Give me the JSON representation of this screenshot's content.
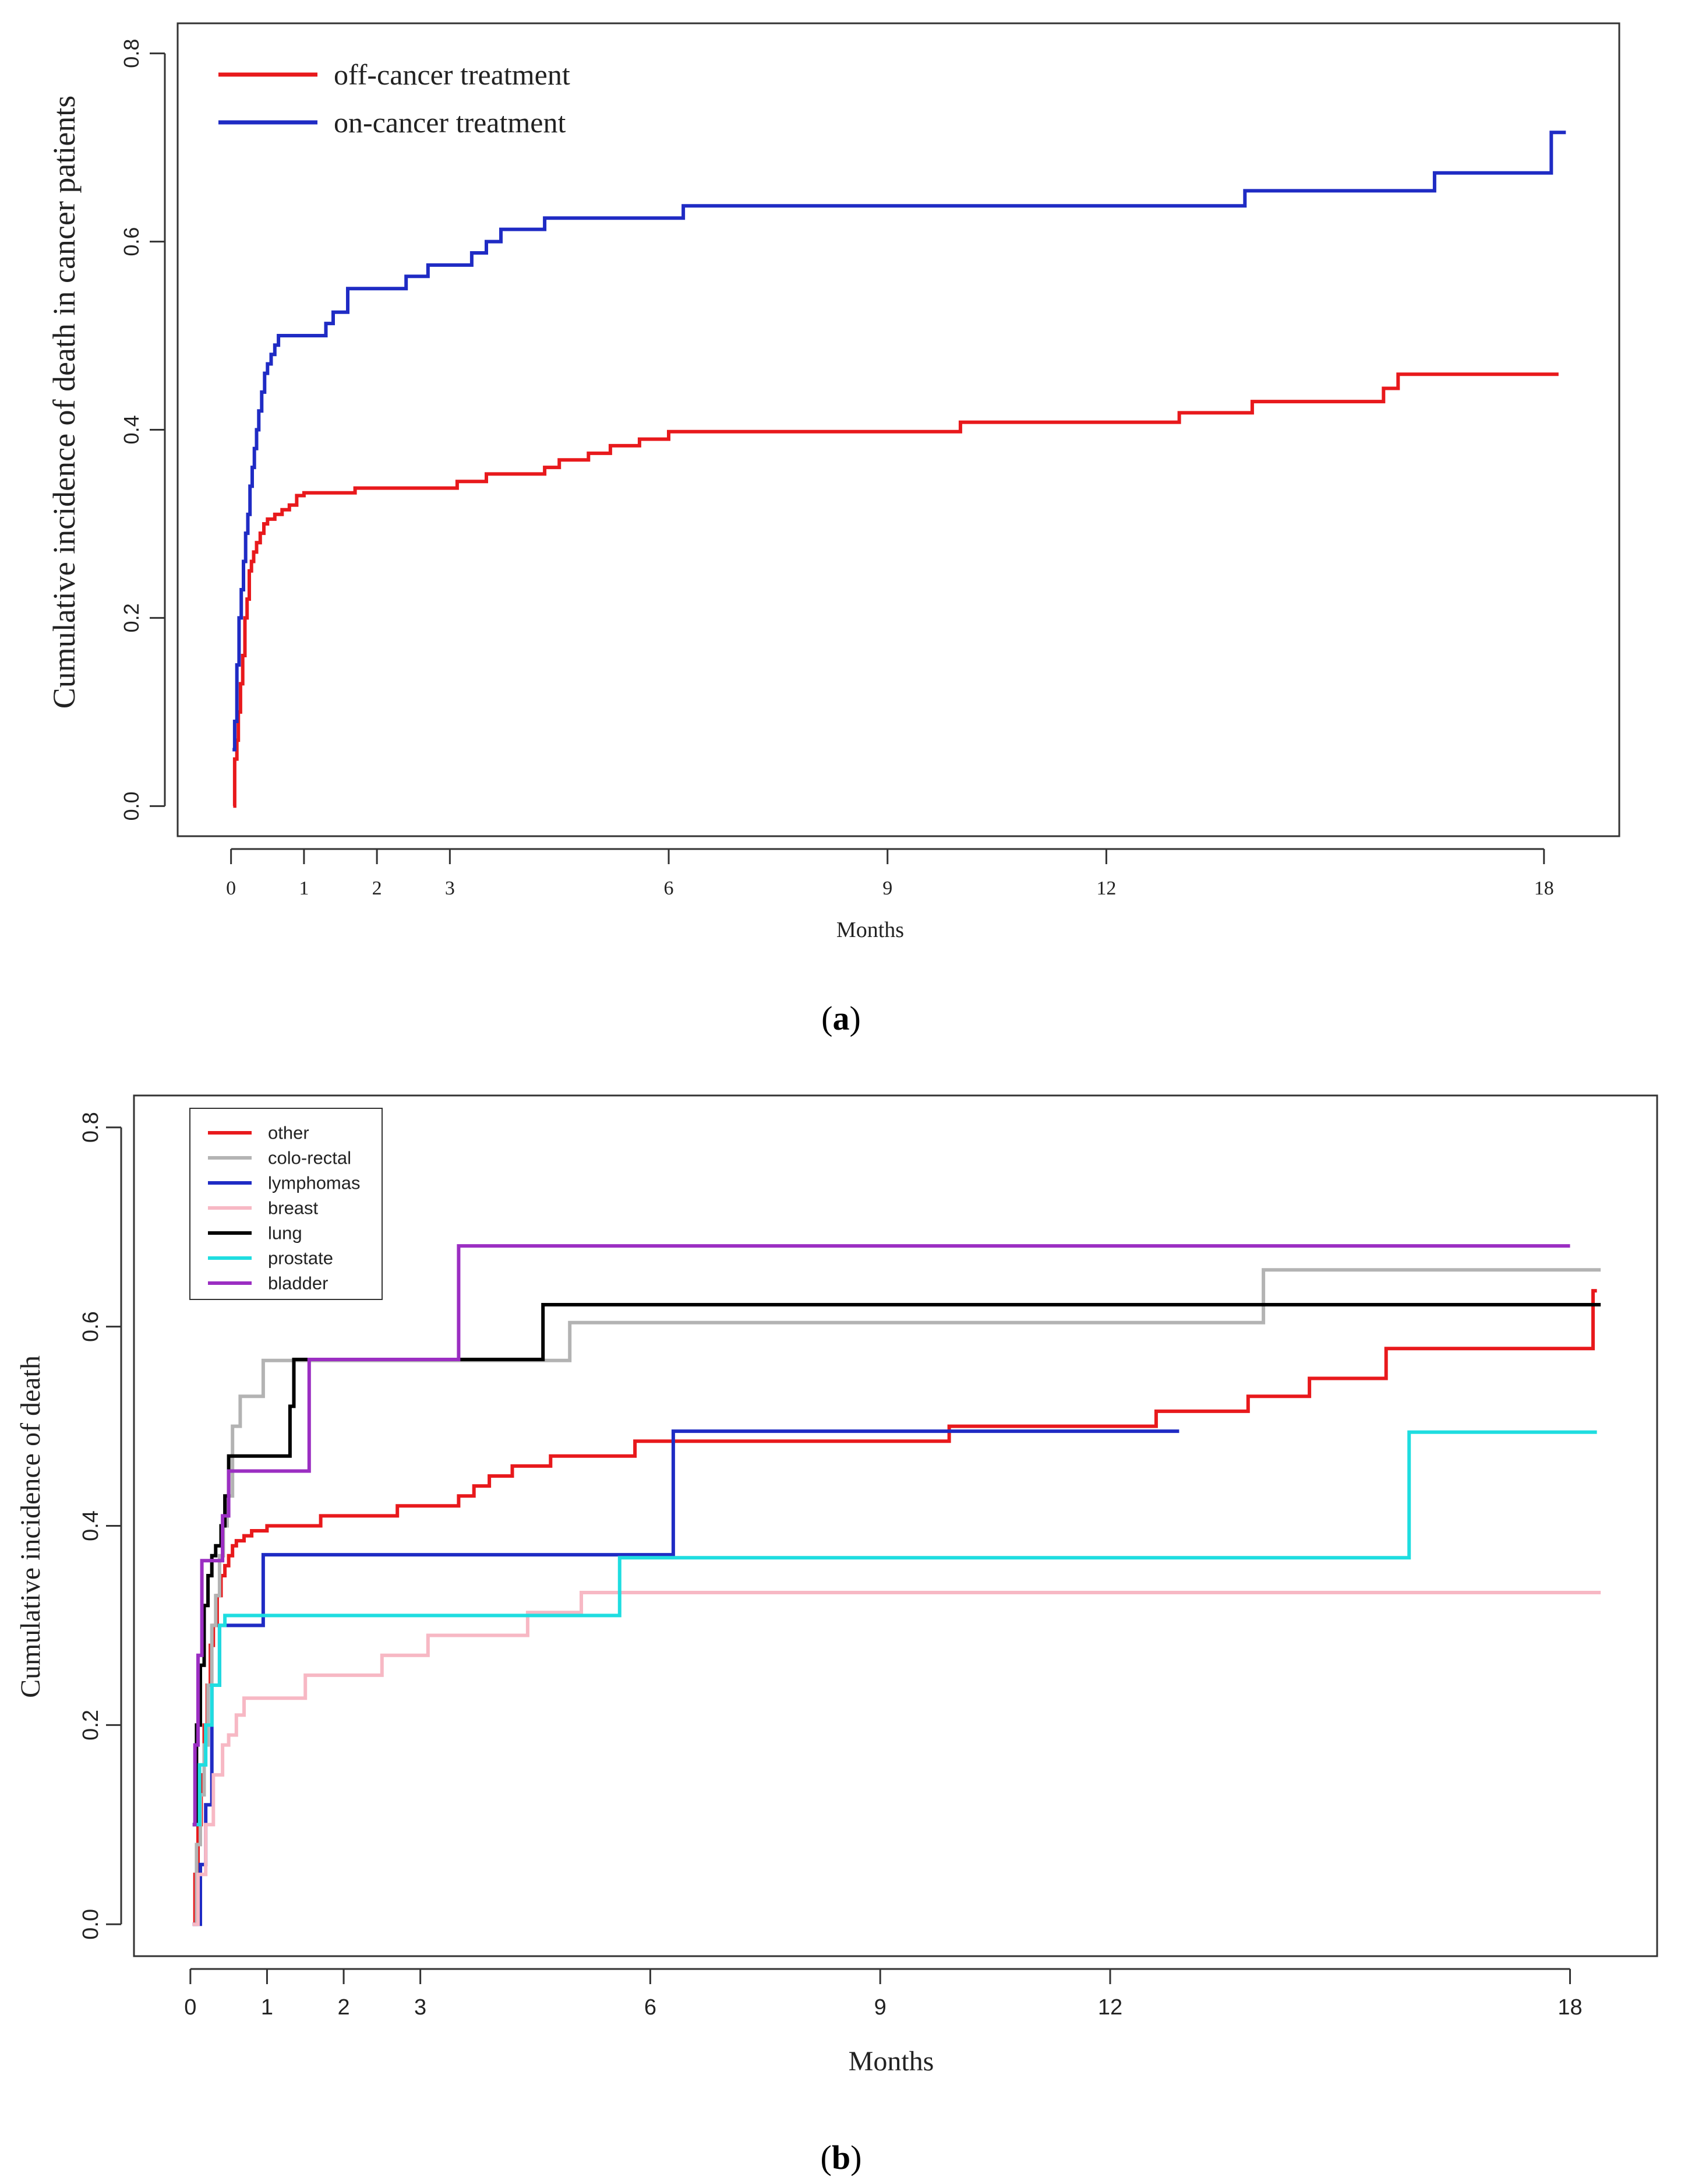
{
  "chart_data": [
    {
      "type": "line",
      "step": true,
      "panel_label": "(a)",
      "panel_letter": "a",
      "title": "",
      "xlabel": "Months",
      "ylabel": "Cumulative incidence of death in cancer patients",
      "xlim": [
        0,
        18.3
      ],
      "ylim": [
        0,
        0.8
      ],
      "x_ticks": [
        0,
        1,
        2,
        3,
        6,
        9,
        12,
        18
      ],
      "x_tick_labels": [
        "0",
        "1",
        "2",
        "3",
        "6",
        "9",
        "12",
        "18"
      ],
      "y_ticks": [
        0.0,
        0.2,
        0.4,
        0.6,
        0.8
      ],
      "y_tick_labels": [
        "0.0",
        "0.2",
        "0.4",
        "0.6",
        "0.8"
      ],
      "legend_position": "top-left",
      "series": [
        {
          "name": "off-cancer treatment",
          "color": "#e8191c",
          "x": [
            0.03,
            0.05,
            0.08,
            0.1,
            0.13,
            0.16,
            0.19,
            0.22,
            0.25,
            0.28,
            0.31,
            0.35,
            0.4,
            0.45,
            0.5,
            0.6,
            0.7,
            0.8,
            0.9,
            1.0,
            1.7,
            3.1,
            3.5,
            4.3,
            4.5,
            4.9,
            5.2,
            5.6,
            6.0,
            10.0,
            13.0,
            14.0,
            15.8,
            16.0,
            18.2
          ],
          "y": [
            0.0,
            0.05,
            0.07,
            0.1,
            0.13,
            0.16,
            0.2,
            0.22,
            0.25,
            0.26,
            0.27,
            0.28,
            0.29,
            0.3,
            0.305,
            0.31,
            0.315,
            0.32,
            0.33,
            0.333,
            0.338,
            0.345,
            0.353,
            0.36,
            0.368,
            0.375,
            0.383,
            0.39,
            0.398,
            0.408,
            0.418,
            0.43,
            0.444,
            0.459,
            0.459
          ]
        },
        {
          "name": "on-cancer treatment",
          "color": "#1f2bc4",
          "x": [
            0.02,
            0.05,
            0.08,
            0.11,
            0.14,
            0.17,
            0.2,
            0.23,
            0.26,
            0.29,
            0.32,
            0.35,
            0.38,
            0.42,
            0.46,
            0.5,
            0.55,
            0.6,
            0.65,
            0.7,
            1.3,
            1.4,
            1.6,
            2.4,
            2.7,
            3.3,
            3.5,
            3.7,
            4.3,
            6.2,
            13.9,
            16.5,
            18.1,
            18.3
          ],
          "y": [
            0.06,
            0.09,
            0.15,
            0.2,
            0.23,
            0.26,
            0.29,
            0.31,
            0.34,
            0.36,
            0.38,
            0.4,
            0.42,
            0.44,
            0.46,
            0.47,
            0.48,
            0.49,
            0.5,
            0.5,
            0.513,
            0.525,
            0.55,
            0.563,
            0.575,
            0.588,
            0.6,
            0.613,
            0.625,
            0.638,
            0.654,
            0.673,
            0.716,
            0.716
          ]
        }
      ]
    },
    {
      "type": "line",
      "step": true,
      "panel_label": "(b)",
      "panel_letter": "b",
      "title": "",
      "xlabel": "Months",
      "ylabel": "Cumulative incidence of death",
      "xlim": [
        0,
        18.4
      ],
      "ylim": [
        0,
        0.8
      ],
      "x_ticks": [
        0,
        1,
        2,
        3,
        6,
        9,
        12,
        18
      ],
      "x_tick_labels": [
        "0",
        "1",
        "2",
        "3",
        "6",
        "9",
        "12",
        "18"
      ],
      "y_ticks": [
        0.0,
        0.2,
        0.4,
        0.6,
        0.8
      ],
      "y_tick_labels": [
        "0.0",
        "0.2",
        "0.4",
        "0.6",
        "0.8"
      ],
      "legend_position": "top-left",
      "series": [
        {
          "name": "other",
          "color": "#e8191c",
          "x": [
            0.03,
            0.06,
            0.1,
            0.14,
            0.18,
            0.22,
            0.26,
            0.3,
            0.35,
            0.4,
            0.45,
            0.5,
            0.55,
            0.6,
            0.7,
            0.8,
            1.0,
            1.7,
            2.7,
            3.5,
            3.7,
            3.9,
            4.2,
            4.7,
            5.8,
            9.9,
            12.6,
            13.8,
            14.6,
            15.6,
            16.7,
            18.3,
            18.35
          ],
          "y": [
            0.0,
            0.05,
            0.1,
            0.15,
            0.2,
            0.24,
            0.28,
            0.3,
            0.33,
            0.35,
            0.36,
            0.37,
            0.38,
            0.385,
            0.39,
            0.395,
            0.4,
            0.41,
            0.42,
            0.43,
            0.44,
            0.45,
            0.46,
            0.47,
            0.485,
            0.5,
            0.515,
            0.53,
            0.548,
            0.578,
            0.578,
            0.636,
            0.636
          ]
        },
        {
          "name": "colo-rectal",
          "color": "#b3b3b3",
          "x": [
            0.03,
            0.08,
            0.13,
            0.18,
            0.23,
            0.28,
            0.33,
            0.38,
            0.43,
            0.48,
            0.55,
            0.65,
            0.75,
            0.95,
            4.95,
            14.0,
            18.4
          ],
          "y": [
            0.0,
            0.08,
            0.13,
            0.18,
            0.24,
            0.3,
            0.33,
            0.37,
            0.4,
            0.43,
            0.5,
            0.53,
            0.53,
            0.566,
            0.604,
            0.657,
            0.657
          ]
        },
        {
          "name": "lymphomas",
          "color": "#1f2bc4",
          "x": [
            0.03,
            0.13,
            0.2,
            0.28,
            0.38,
            0.5,
            0.8,
            0.95,
            6.3,
            10.0,
            12.9
          ],
          "y": [
            0.0,
            0.06,
            0.12,
            0.24,
            0.3,
            0.3,
            0.3,
            0.371,
            0.495,
            0.495,
            0.495
          ]
        },
        {
          "name": "breast",
          "color": "#f7b8c4",
          "x": [
            0.03,
            0.1,
            0.2,
            0.3,
            0.42,
            0.5,
            0.6,
            0.7,
            1.5,
            2.5,
            3.1,
            4.4,
            5.1,
            18.4
          ],
          "y": [
            0.0,
            0.05,
            0.1,
            0.15,
            0.18,
            0.19,
            0.21,
            0.227,
            0.25,
            0.27,
            0.29,
            0.313,
            0.333,
            0.333
          ]
        },
        {
          "name": "lung",
          "color": "#000000",
          "x": [
            0.03,
            0.08,
            0.13,
            0.18,
            0.23,
            0.28,
            0.33,
            0.4,
            0.45,
            0.5,
            1.3,
            1.35,
            4.6,
            18.4
          ],
          "y": [
            0.1,
            0.2,
            0.26,
            0.32,
            0.35,
            0.37,
            0.38,
            0.4,
            0.43,
            0.47,
            0.52,
            0.567,
            0.622,
            0.622
          ]
        },
        {
          "name": "prostate",
          "color": "#1fdde0",
          "x": [
            0.03,
            0.12,
            0.2,
            0.28,
            0.38,
            0.45,
            5.6,
            15.9,
            18.35
          ],
          "y": [
            0.1,
            0.16,
            0.2,
            0.24,
            0.3,
            0.31,
            0.368,
            0.494,
            0.494
          ]
        },
        {
          "name": "bladder",
          "color": "#9b2ec2",
          "x": [
            0.03,
            0.06,
            0.1,
            0.15,
            0.3,
            0.42,
            0.5,
            1.55,
            3.5,
            18.0
          ],
          "y": [
            0.1,
            0.18,
            0.27,
            0.365,
            0.365,
            0.41,
            0.455,
            0.567,
            0.681,
            0.681
          ]
        }
      ]
    }
  ]
}
